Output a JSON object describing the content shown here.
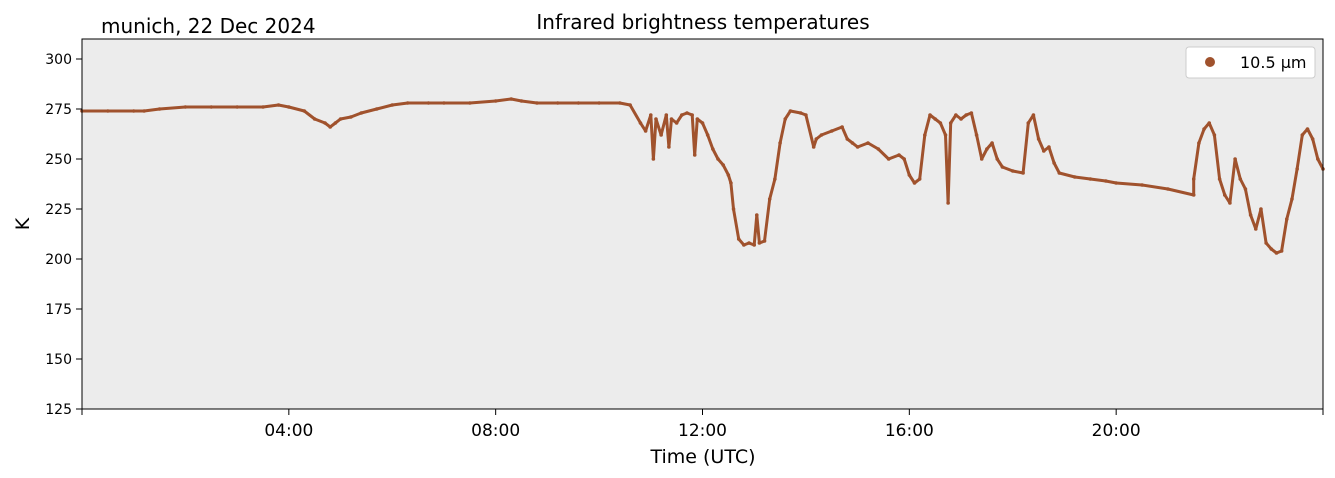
{
  "chart_data": {
    "type": "scatter",
    "title": "Infrared brightness temperatures",
    "subtitle": "munich, 22 Dec 2024",
    "xlabel": "Time (UTC)",
    "ylabel": "K",
    "xlim": [
      0,
      24
    ],
    "ylim": [
      125,
      310
    ],
    "x_ticks": [
      {
        "value": 4,
        "label": "04:00"
      },
      {
        "value": 8,
        "label": "08:00"
      },
      {
        "value": 12,
        "label": "12:00"
      },
      {
        "value": 16,
        "label": "16:00"
      },
      {
        "value": 20,
        "label": "20:00"
      }
    ],
    "y_ticks": [
      125,
      150,
      175,
      200,
      225,
      250,
      275,
      300
    ],
    "grid": false,
    "legend_position": "top-right",
    "background_color": "#ececec",
    "series": [
      {
        "name": "10.5 µm",
        "color": "#a0522d",
        "points": [
          [
            0.0,
            274
          ],
          [
            0.5,
            274
          ],
          [
            1.0,
            274
          ],
          [
            1.2,
            274
          ],
          [
            1.5,
            275
          ],
          [
            2.0,
            276
          ],
          [
            2.5,
            276
          ],
          [
            3.0,
            276
          ],
          [
            3.5,
            276
          ],
          [
            3.8,
            277
          ],
          [
            4.0,
            276
          ],
          [
            4.3,
            274
          ],
          [
            4.5,
            270
          ],
          [
            4.7,
            268
          ],
          [
            4.8,
            266
          ],
          [
            4.9,
            268
          ],
          [
            5.0,
            270
          ],
          [
            5.2,
            271
          ],
          [
            5.4,
            273
          ],
          [
            5.7,
            275
          ],
          [
            6.0,
            277
          ],
          [
            6.3,
            278
          ],
          [
            6.7,
            278
          ],
          [
            7.0,
            278
          ],
          [
            7.5,
            278
          ],
          [
            8.0,
            279
          ],
          [
            8.3,
            280
          ],
          [
            8.5,
            279
          ],
          [
            8.8,
            278
          ],
          [
            9.2,
            278
          ],
          [
            9.6,
            278
          ],
          [
            10.0,
            278
          ],
          [
            10.4,
            278
          ],
          [
            10.6,
            277
          ],
          [
            10.8,
            268
          ],
          [
            10.9,
            264
          ],
          [
            11.0,
            272
          ],
          [
            11.05,
            250
          ],
          [
            11.1,
            270
          ],
          [
            11.2,
            262
          ],
          [
            11.3,
            272
          ],
          [
            11.35,
            256
          ],
          [
            11.4,
            270
          ],
          [
            11.5,
            268
          ],
          [
            11.6,
            272
          ],
          [
            11.7,
            273
          ],
          [
            11.8,
            272
          ],
          [
            11.85,
            252
          ],
          [
            11.9,
            270
          ],
          [
            12.0,
            268
          ],
          [
            12.1,
            262
          ],
          [
            12.2,
            255
          ],
          [
            12.3,
            250
          ],
          [
            12.4,
            247
          ],
          [
            12.5,
            242
          ],
          [
            12.55,
            238
          ],
          [
            12.6,
            225
          ],
          [
            12.7,
            210
          ],
          [
            12.8,
            207
          ],
          [
            12.9,
            208
          ],
          [
            13.0,
            207
          ],
          [
            13.05,
            222
          ],
          [
            13.1,
            208
          ],
          [
            13.2,
            209
          ],
          [
            13.3,
            230
          ],
          [
            13.4,
            240
          ],
          [
            13.5,
            258
          ],
          [
            13.6,
            270
          ],
          [
            13.7,
            274
          ],
          [
            13.9,
            273
          ],
          [
            14.0,
            272
          ],
          [
            14.15,
            256
          ],
          [
            14.2,
            260
          ],
          [
            14.3,
            262
          ],
          [
            14.5,
            264
          ],
          [
            14.7,
            266
          ],
          [
            14.8,
            260
          ],
          [
            14.9,
            258
          ],
          [
            15.0,
            256
          ],
          [
            15.2,
            258
          ],
          [
            15.4,
            255
          ],
          [
            15.6,
            250
          ],
          [
            15.8,
            252
          ],
          [
            15.9,
            250
          ],
          [
            16.0,
            242
          ],
          [
            16.1,
            238
          ],
          [
            16.2,
            240
          ],
          [
            16.3,
            262
          ],
          [
            16.4,
            272
          ],
          [
            16.5,
            270
          ],
          [
            16.6,
            268
          ],
          [
            16.7,
            262
          ],
          [
            16.75,
            228
          ],
          [
            16.8,
            268
          ],
          [
            16.9,
            272
          ],
          [
            17.0,
            270
          ],
          [
            17.1,
            272
          ],
          [
            17.2,
            273
          ],
          [
            17.3,
            262
          ],
          [
            17.4,
            250
          ],
          [
            17.5,
            255
          ],
          [
            17.6,
            258
          ],
          [
            17.7,
            250
          ],
          [
            17.8,
            246
          ],
          [
            18.0,
            244
          ],
          [
            18.2,
            243
          ],
          [
            18.3,
            268
          ],
          [
            18.4,
            272
          ],
          [
            18.5,
            260
          ],
          [
            18.6,
            254
          ],
          [
            18.7,
            256
          ],
          [
            18.8,
            248
          ],
          [
            18.9,
            243
          ],
          [
            19.2,
            241
          ],
          [
            19.5,
            240
          ],
          [
            19.8,
            239
          ],
          [
            20.0,
            238
          ],
          [
            20.5,
            237
          ],
          [
            21.0,
            235
          ],
          [
            21.5,
            232
          ],
          [
            21.5,
            240
          ],
          [
            21.6,
            258
          ],
          [
            21.7,
            265
          ],
          [
            21.8,
            268
          ],
          [
            21.9,
            262
          ],
          [
            22.0,
            240
          ],
          [
            22.1,
            232
          ],
          [
            22.2,
            228
          ],
          [
            22.3,
            250
          ],
          [
            22.4,
            240
          ],
          [
            22.5,
            235
          ],
          [
            22.6,
            222
          ],
          [
            22.7,
            215
          ],
          [
            22.8,
            225
          ],
          [
            22.9,
            208
          ],
          [
            23.0,
            205
          ],
          [
            23.1,
            203
          ],
          [
            23.2,
            204
          ],
          [
            23.3,
            220
          ],
          [
            23.4,
            230
          ],
          [
            23.5,
            245
          ],
          [
            23.6,
            262
          ],
          [
            23.7,
            265
          ],
          [
            23.8,
            260
          ],
          [
            23.9,
            250
          ],
          [
            24.0,
            245
          ]
        ]
      }
    ]
  }
}
